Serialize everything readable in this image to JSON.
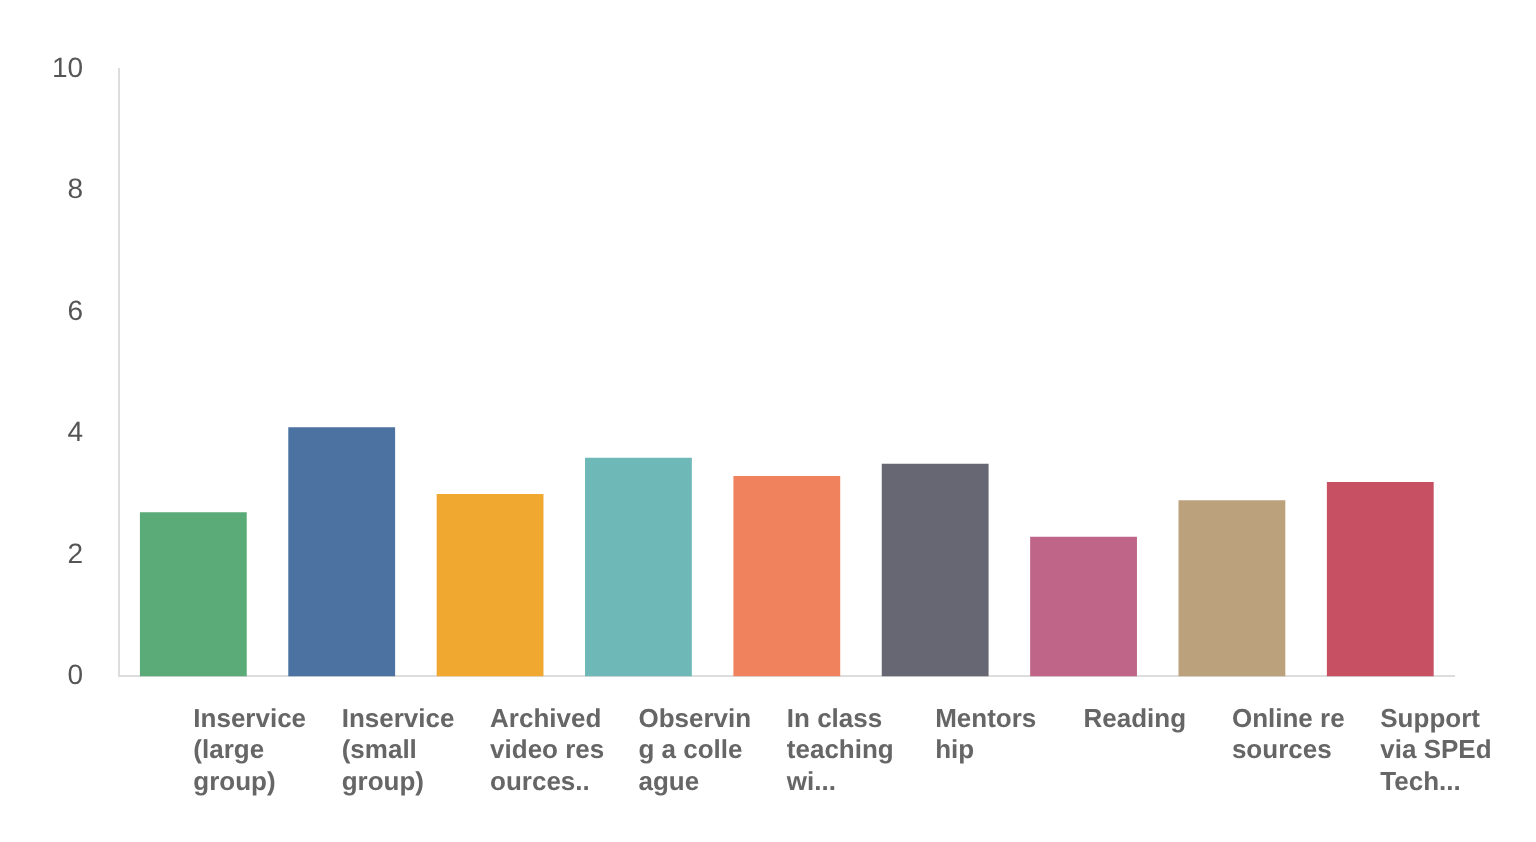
{
  "chart_data": {
    "type": "bar",
    "categories": [
      "Inservice (large group)",
      "Inservice (small group)",
      "Archived video resources..",
      "Observing a colleague",
      "In class teaching wi...",
      "Mentorship",
      "Reading",
      "Online resources",
      "Support via SPEd Tech..."
    ],
    "values": [
      2.7,
      4.1,
      3.0,
      3.6,
      3.3,
      3.5,
      2.3,
      2.9,
      3.2
    ],
    "colors": [
      "#5aab78",
      "#4b72a0",
      "#f0a830",
      "#6fb8b8",
      "#f0825e",
      "#676773",
      "#bf6688",
      "#bba27c",
      "#c75063"
    ],
    "ylim": [
      0,
      10
    ],
    "yticks": [
      0,
      2,
      4,
      6,
      8,
      10
    ],
    "grid": false,
    "legend": false
  }
}
